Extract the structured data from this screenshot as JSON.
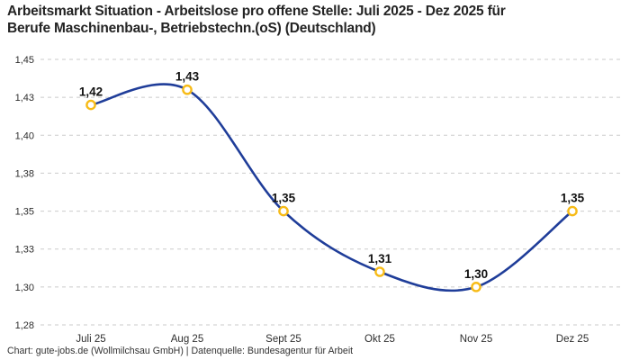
{
  "title": {
    "lines": [
      "Arbeitsmarkt Situation - Arbeitslose pro offene Stelle: Juli 2025 - Dez 2025 für",
      "Berufe Maschinenbau-, Betriebstechn.(oS) (Deutschland)"
    ],
    "full_text": "Arbeitsmarkt Situation - Arbeitslose pro offene Stelle: Juli 2025 - Dez 2025 für Berufe Maschinenbau-, Betriebstechn.(oS) (Deutschland)"
  },
  "footer": {
    "text": "Chart: gute-jobs.de (Wollmilchsau GmbH) | Datenquelle: Bundesagentur für Arbeit"
  },
  "chart_data": {
    "type": "line",
    "title": "Arbeitsmarkt Situation - Arbeitslose pro offene Stelle: Juli 2025 - Dez 2025 für Berufe Maschinenbau-, Betriebstechn.(oS) (Deutschland)",
    "categories": [
      "Juli 25",
      "Aug 25",
      "Sept 25",
      "Okt 25",
      "Nov 25",
      "Dez 25"
    ],
    "values": [
      1.42,
      1.43,
      1.35,
      1.31,
      1.3,
      1.35
    ],
    "point_labels": [
      "1,42",
      "1,43",
      "1,35",
      "1,31",
      "1,30",
      "1,35"
    ],
    "y_ticks": [
      {
        "label": "1,45",
        "value": 1.45
      },
      {
        "label": "1,43",
        "value": 1.425
      },
      {
        "label": "1,40",
        "value": 1.4
      },
      {
        "label": "1,38",
        "value": 1.375
      },
      {
        "label": "1,35",
        "value": 1.35
      },
      {
        "label": "1,33",
        "value": 1.325
      },
      {
        "label": "1,30",
        "value": 1.3
      },
      {
        "label": "1,28",
        "value": 1.275
      }
    ],
    "ylim": [
      1.275,
      1.45
    ],
    "grid": "horizontal-dashed",
    "legend": "none",
    "smooth": true,
    "colors": {
      "line": "#1F3D99",
      "marker_ring": "#F7BB17",
      "marker_fill": "#FFFFFF",
      "gridline": "#CBCBCB",
      "tick_text": "#2E2E2E",
      "point_label_text": "#111111"
    }
  }
}
